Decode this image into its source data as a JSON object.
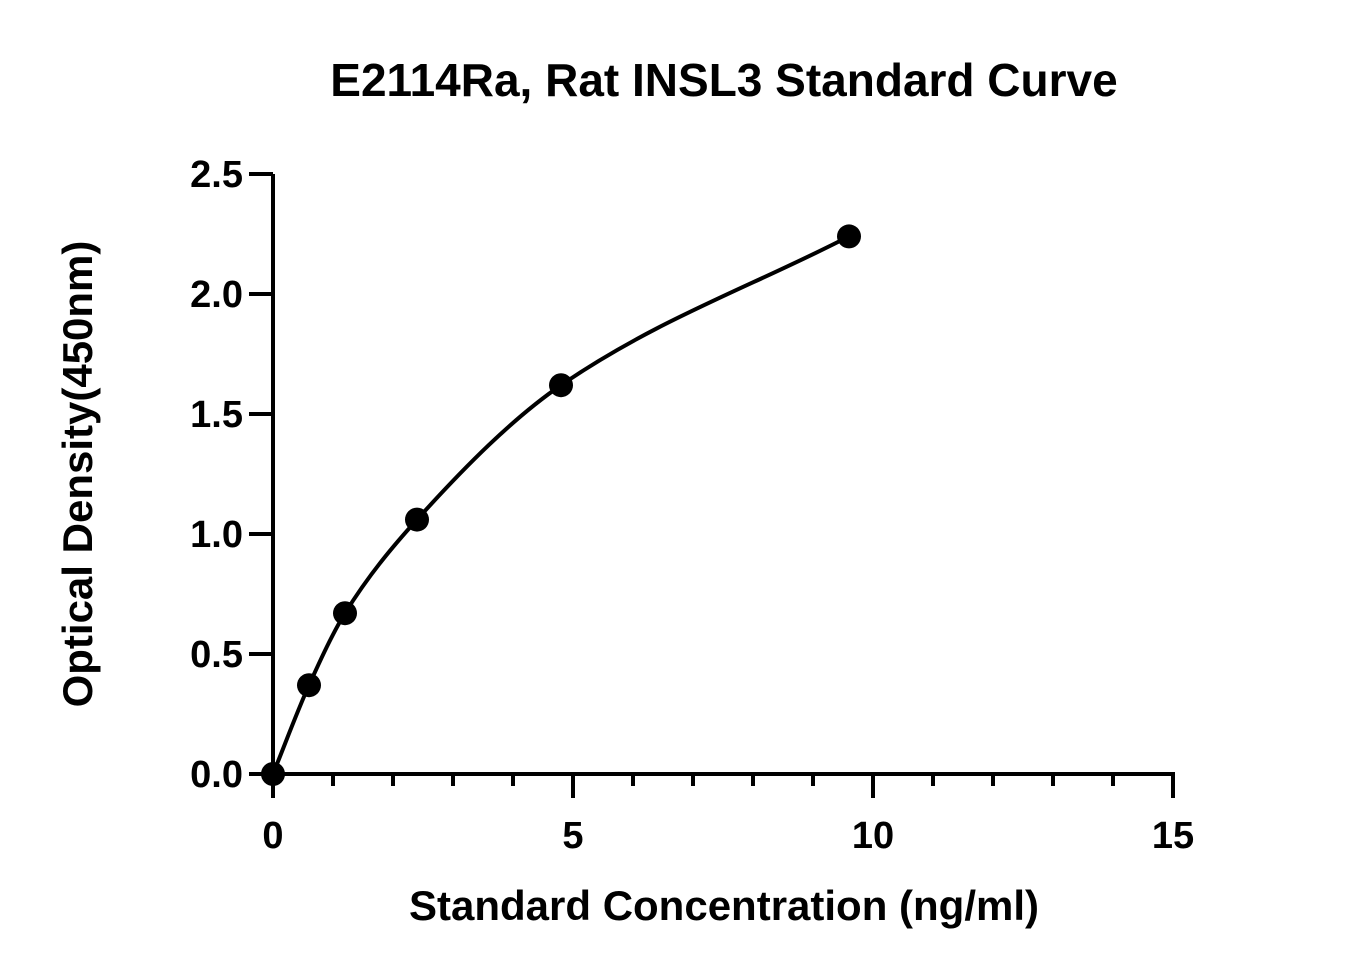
{
  "chart_data": {
    "type": "scatter",
    "title": "E2114Ra, Rat INSL3 Standard Curve",
    "xlabel": "Standard Concentration (ng/ml)",
    "ylabel": "Optical Density(450nm)",
    "xlim": [
      0,
      15
    ],
    "ylim": [
      0,
      2.5
    ],
    "x_ticks": [
      "0",
      "5",
      "10",
      "15"
    ],
    "y_ticks": [
      "0.0",
      "0.5",
      "1.0",
      "1.5",
      "2.0",
      "2.5"
    ],
    "x_minor_step": 1,
    "grid": false,
    "fit_curve": "smooth line through points",
    "series": [
      {
        "x": [
          0,
          0.6,
          1.2,
          2.4,
          4.8,
          9.6
        ],
        "y": [
          0.0,
          0.37,
          0.67,
          1.06,
          1.62,
          2.24
        ]
      }
    ],
    "colors": {
      "marker": "#000000",
      "line": "#000000"
    }
  }
}
